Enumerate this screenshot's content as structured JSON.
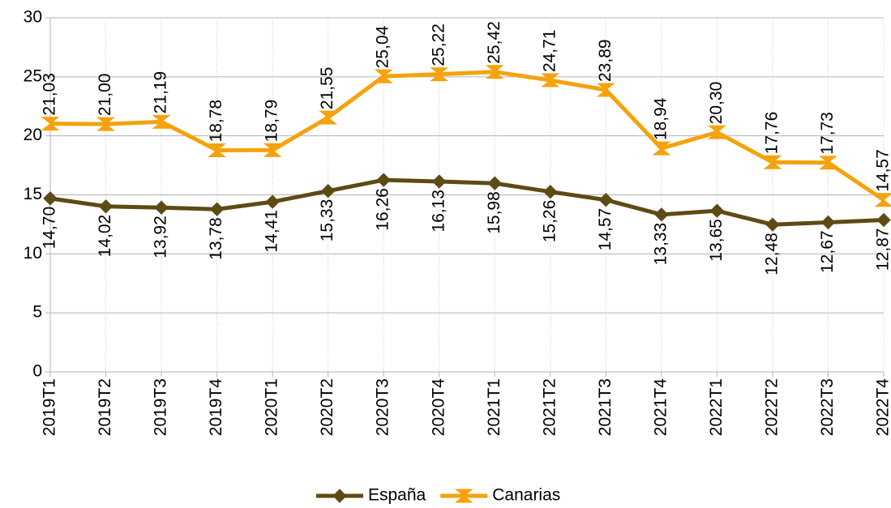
{
  "chart_data": {
    "type": "line",
    "categories": [
      "2019T1",
      "2019T2",
      "2019T3",
      "2019T4",
      "2020T1",
      "2020T2",
      "2020T3",
      "2020T4",
      "2021T1",
      "2021T2",
      "2021T3",
      "2021T4",
      "2022T1",
      "2022T2",
      "2022T3",
      "2022T4"
    ],
    "series": [
      {
        "name": "España",
        "color": "#5e4a14",
        "marker": "diamond",
        "values": [
          14.7,
          14.02,
          13.92,
          13.78,
          14.41,
          15.33,
          16.26,
          16.13,
          15.98,
          15.26,
          14.57,
          13.33,
          13.65,
          12.48,
          12.67,
          12.87
        ],
        "value_labels": [
          "14,70",
          "14,02",
          "13,92",
          "13,78",
          "14,41",
          "15,33",
          "16,26",
          "16,13",
          "15,98",
          "15,26",
          "14,57",
          "13,33",
          "13,65",
          "12,48",
          "12,67",
          "12,87"
        ]
      },
      {
        "name": "Canarias",
        "color": "#f5a20c",
        "marker": "bowtie",
        "values": [
          21.03,
          21.0,
          21.19,
          18.78,
          18.79,
          21.55,
          25.04,
          25.22,
          25.42,
          24.71,
          23.89,
          18.94,
          20.3,
          17.76,
          17.73,
          14.57
        ],
        "value_labels": [
          "21,03",
          "21,00",
          "21,19",
          "18,78",
          "18,79",
          "21,55",
          "25,04",
          "25,22",
          "25,42",
          "24,71",
          "23,89",
          "18,94",
          "20,30",
          "17,76",
          "17,73",
          "14,57"
        ]
      }
    ],
    "ylim": [
      0,
      30
    ],
    "yticks": [
      0,
      5,
      10,
      15,
      20,
      25,
      30
    ],
    "grid": true,
    "legend": "bottom"
  }
}
